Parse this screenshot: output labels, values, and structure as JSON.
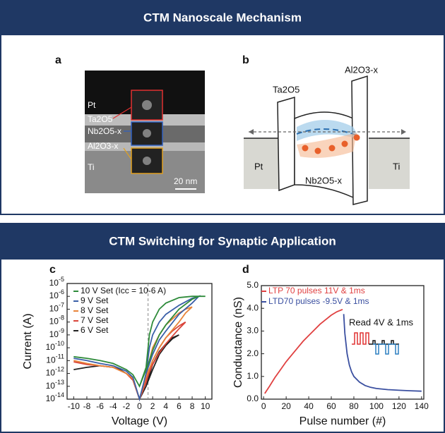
{
  "headers": [
    "CTM Nanoscale Mechanism",
    "CTM Switching for Synaptic Application"
  ],
  "panel_a": {
    "label": "a",
    "layers": [
      "Pt",
      "Ta2O5",
      "Nb2O5-x",
      "Al2O3-x",
      "Ti"
    ],
    "scale_bar": "20 nm"
  },
  "panel_b": {
    "label": "b",
    "labels": [
      "Pt",
      "Ti",
      "Ta2O5",
      "Al2O3-x",
      "Nb2O5-x"
    ]
  },
  "chart_data": [
    {
      "type": "line",
      "panel_label": "c",
      "xlabel": "Voltage (V)",
      "ylabel": "Current (A)",
      "log_y": true,
      "xlim": [
        -11,
        11
      ],
      "xticks": [
        -10,
        -8,
        -6,
        -4,
        -2,
        0,
        2,
        4,
        6,
        8,
        10
      ],
      "ylim": [
        1e-14,
        1e-05
      ],
      "yticks": [
        {
          "value": 1e-14,
          "label": "10-14"
        },
        {
          "value": 1e-13,
          "label": "10-13"
        },
        {
          "value": 1e-12,
          "label": "10-12"
        },
        {
          "value": 1e-11,
          "label": "10-11"
        },
        {
          "value": 1e-10,
          "label": "10-10"
        },
        {
          "value": 1e-09,
          "label": "10-9"
        },
        {
          "value": 1e-08,
          "label": "10-8"
        },
        {
          "value": 1e-07,
          "label": "10-7"
        },
        {
          "value": 1e-06,
          "label": "10-6"
        },
        {
          "value": 1e-05,
          "label": "10-5"
        }
      ],
      "vline_x": 1.3,
      "series": [
        {
          "name": "10 V Set (Icc = 10-6 A)",
          "color": "#2e8b3a",
          "x": [
            -10,
            -8,
            -6,
            -4,
            -2,
            -1,
            0,
            1,
            1.5,
            2,
            3,
            4,
            6,
            8,
            9,
            10,
            8,
            6,
            4,
            3,
            2,
            1.5,
            1,
            0
          ],
          "values": [
            2e-11,
            1.5e-11,
            1e-11,
            6e-12,
            2e-12,
            8e-13,
            1e-13,
            2e-12,
            1e-11,
            6e-11,
            1e-09,
            6e-09,
            1e-07,
            6e-07,
            1e-06,
            1e-06,
            1e-06,
            8e-07,
            3e-07,
            1e-07,
            1e-08,
            1e-09,
            3e-12,
            1e-13
          ]
        },
        {
          "name": "9 V Set",
          "color": "#3a5fa8",
          "x": [
            -10,
            -8,
            -6,
            -4,
            -2,
            -1,
            0,
            1,
            2,
            3,
            4,
            6,
            8,
            9,
            8,
            6,
            4,
            3,
            2,
            1.5,
            1,
            0
          ],
          "values": [
            1.5e-11,
            1e-11,
            6e-12,
            4e-12,
            1.5e-12,
            5e-13,
            1e-14,
            1e-12,
            3e-11,
            4e-10,
            2e-09,
            4e-08,
            3e-07,
            1e-06,
            7e-07,
            2e-07,
            4e-08,
            1e-08,
            1e-09,
            1e-10,
            1e-12,
            1e-14
          ]
        },
        {
          "name": "8 V Set",
          "color": "#e8843a",
          "x": [
            -10,
            -8,
            -6,
            -4,
            -2,
            -1,
            0,
            1,
            2,
            3,
            4,
            6,
            7,
            8,
            7,
            6,
            4,
            3,
            2,
            1.5,
            1,
            0
          ],
          "values": [
            1e-11,
            6e-12,
            4e-12,
            3e-12,
            1e-12,
            4e-13,
            1e-14,
            5e-13,
            1e-11,
            1e-10,
            6e-10,
            1e-08,
            5e-08,
            1.5e-07,
            1e-07,
            5e-08,
            6e-09,
            1e-09,
            1e-10,
            1e-11,
            5e-13,
            1e-14
          ]
        },
        {
          "name": "7 V Set",
          "color": "#d9443a",
          "x": [
            -10,
            -8,
            -6,
            -4,
            -2,
            -1,
            0,
            1,
            2,
            3,
            4,
            5,
            6,
            7,
            6,
            5,
            4,
            3,
            2,
            1,
            0
          ],
          "values": [
            8e-12,
            5e-12,
            4e-12,
            3e-12,
            1e-12,
            3e-13,
            1e-14,
            3e-13,
            5e-12,
            4e-11,
            2e-10,
            8e-10,
            3e-09,
            1e-08,
            5e-09,
            2e-09,
            6e-10,
            1e-10,
            1e-11,
            2e-13,
            1e-14
          ]
        },
        {
          "name": "6 V Set",
          "color": "#222222",
          "x": [
            -10,
            -8,
            -6,
            -4,
            -3,
            -2,
            -1,
            0,
            1,
            2,
            3,
            4,
            5,
            6,
            5,
            4,
            3,
            2,
            1,
            0
          ],
          "values": [
            2e-12,
            3e-12,
            4e-12,
            3e-12,
            2e-12,
            1e-12,
            4e-13,
            1e-14,
            1e-13,
            2e-12,
            3e-11,
            1.5e-10,
            5e-10,
            1e-09,
            6e-10,
            2e-10,
            5e-11,
            5e-12,
            1e-13,
            1e-14
          ]
        }
      ]
    },
    {
      "type": "line",
      "panel_label": "d",
      "xlabel": "Pulse number (#)",
      "ylabel": "Conductance (nS)",
      "annotation": "Read 4V & 1ms",
      "xlim": [
        -2,
        142
      ],
      "xticks": [
        0,
        20,
        40,
        60,
        80,
        100,
        120,
        140
      ],
      "ylim": [
        0,
        5
      ],
      "yticks": [
        {
          "value": 0,
          "label": "0.0"
        },
        {
          "value": 1,
          "label": "1.0"
        },
        {
          "value": 2,
          "label": "2.0"
        },
        {
          "value": 3,
          "label": "3.0"
        },
        {
          "value": 4,
          "label": "4.0"
        },
        {
          "value": 5,
          "label": "5.0"
        }
      ],
      "series": [
        {
          "name": "LTP 70 pulses 11V & 1ms",
          "color": "#e04040",
          "x": [
            1,
            5,
            10,
            15,
            20,
            25,
            30,
            35,
            40,
            45,
            50,
            55,
            60,
            65,
            70
          ],
          "values": [
            0.25,
            0.55,
            0.95,
            1.3,
            1.65,
            1.95,
            2.25,
            2.55,
            2.8,
            3.05,
            3.3,
            3.5,
            3.7,
            3.85,
            3.95
          ]
        },
        {
          "name": "LTD70 pulses -9.5V & 1ms",
          "color": "#3a4fa0",
          "x": [
            71,
            72,
            74,
            76,
            78,
            80,
            85,
            90,
            95,
            100,
            110,
            120,
            130,
            140
          ],
          "values": [
            3.75,
            2.9,
            2.0,
            1.5,
            1.2,
            1.0,
            0.75,
            0.6,
            0.52,
            0.47,
            0.42,
            0.39,
            0.37,
            0.35
          ]
        }
      ]
    }
  ]
}
